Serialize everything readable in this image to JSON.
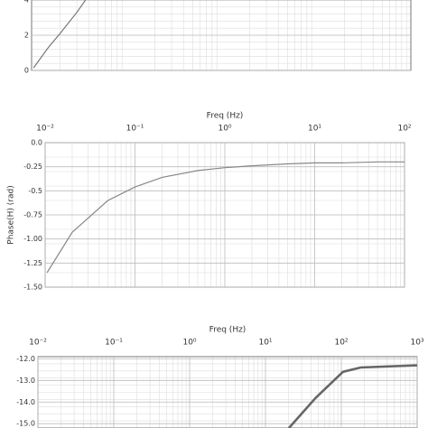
{
  "chart_data": [
    {
      "type": "line",
      "xlog": true,
      "grid": true,
      "xlim": [
        0.01,
        100
      ],
      "ylim": [
        0,
        4
      ],
      "yticks": [
        0,
        2,
        4
      ],
      "series": [
        {
          "color": "#777",
          "x": [
            0.0105,
            0.015,
            0.02,
            0.03,
            0.037
          ],
          "values": [
            0.15,
            1.3,
            2.1,
            3.3,
            4
          ]
        }
      ]
    },
    {
      "type": "line",
      "xlog": true,
      "grid": true,
      "x_label": "Freq (Hz)",
      "y_label": "Phase(H) (rad)",
      "xlim": [
        0.01,
        100
      ],
      "xticks": [
        {
          "value": 0.01,
          "label": "10⁻²"
        },
        {
          "value": 0.1,
          "label": "10⁻¹"
        },
        {
          "value": 1,
          "label": "10⁰"
        },
        {
          "value": 10,
          "label": "10¹"
        },
        {
          "value": 100,
          "label": "10²"
        }
      ],
      "ylim": [
        -1.5,
        0
      ],
      "yticks": [
        {
          "value": 0,
          "label": "0.0"
        },
        -0.25,
        -0.5,
        -0.75,
        {
          "value": -1,
          "label": "-1.00"
        },
        -1.25,
        {
          "value": -1.5,
          "label": "-1.50"
        }
      ],
      "series": [
        {
          "color": "#888",
          "x": [
            0.0105,
            0.02,
            0.05,
            0.1,
            0.2,
            0.5,
            1,
            2,
            5,
            10,
            20,
            50,
            100
          ],
          "values": [
            -1.35,
            -0.93,
            -0.6,
            -0.46,
            -0.36,
            -0.29,
            -0.26,
            -0.24,
            -0.22,
            -0.21,
            -0.21,
            -0.2,
            -0.2
          ]
        }
      ]
    },
    {
      "type": "line",
      "xlog": true,
      "grid": true,
      "x_label": "Freq (Hz)",
      "xlim": [
        0.01,
        1000
      ],
      "xticks": [
        {
          "value": 0.01,
          "label": "10⁻²"
        },
        {
          "value": 0.1,
          "label": "10⁻¹"
        },
        {
          "value": 1,
          "label": "10⁰"
        },
        {
          "value": 10,
          "label": "10¹"
        },
        {
          "value": 100,
          "label": "10²"
        },
        {
          "value": 1000,
          "label": "10³"
        }
      ],
      "ylim": [
        -15.2,
        -11.9
      ],
      "yticks": [
        {
          "value": -12,
          "label": "-12.0"
        },
        {
          "value": -13,
          "label": "-13.0"
        },
        {
          "value": -14,
          "label": "-14.0"
        },
        {
          "value": -15,
          "label": "-15.0"
        }
      ],
      "series": [
        {
          "color": "#666",
          "x": [
            20.4,
            46,
            105,
            180,
            1000
          ],
          "values": [
            -15.2,
            -13.8,
            -12.6,
            -12.4,
            -12.3
          ]
        }
      ]
    }
  ]
}
